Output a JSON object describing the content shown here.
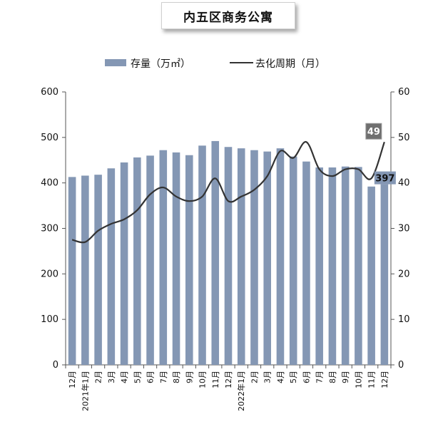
{
  "title": "内五区商务公寓",
  "colors": {
    "bar": "#8497b4",
    "line": "#333333",
    "label_bg": "#6f6f6f",
    "label_bar_bg": "#8497b4",
    "axis": "#555555"
  },
  "chart_data": {
    "type": "bar+line",
    "title": "内五区商务公寓",
    "categories": [
      "12月",
      "1月",
      "2月",
      "3月",
      "4月",
      "5月",
      "6月",
      "7月",
      "8月",
      "9月",
      "10月",
      "11月",
      "12月",
      "1月",
      "2月",
      "3月",
      "4月",
      "5月",
      "6月",
      "7月",
      "8月",
      "9月",
      "10月",
      "11月",
      "12月"
    ],
    "year_labels": [
      {
        "index": 1,
        "text": "2021年1月"
      },
      {
        "index": 13,
        "text": "2022年1月"
      }
    ],
    "series": [
      {
        "name": "存量（万㎡）",
        "kind": "bar",
        "axis": "left",
        "values": [
          413,
          416,
          418,
          432,
          445,
          456,
          460,
          472,
          467,
          461,
          482,
          492,
          479,
          476,
          472,
          469,
          476,
          458,
          447,
          434,
          434,
          436,
          435,
          392,
          397
        ]
      },
      {
        "name": "去化周期（月）",
        "kind": "line",
        "axis": "right",
        "values": [
          27.5,
          27,
          29.5,
          31,
          32,
          34,
          37.5,
          39,
          37,
          36,
          37,
          41,
          36,
          37,
          38.5,
          41.5,
          47,
          45.5,
          49,
          43,
          41.5,
          43,
          43,
          41,
          49
        ]
      }
    ],
    "y_left": {
      "min": 0,
      "max": 600,
      "ticks": [
        0,
        100,
        200,
        300,
        400,
        500,
        600
      ]
    },
    "y_right": {
      "min": 0,
      "max": 60,
      "ticks": [
        0,
        10,
        20,
        30,
        40,
        50,
        60
      ]
    },
    "data_labels": [
      {
        "series": 0,
        "index": 24,
        "text": "397"
      },
      {
        "series": 1,
        "index": 24,
        "text": "49"
      }
    ],
    "legend": {
      "position": "top",
      "items": [
        "存量（万㎡）",
        "去化周期（月）"
      ]
    },
    "grid": false
  }
}
